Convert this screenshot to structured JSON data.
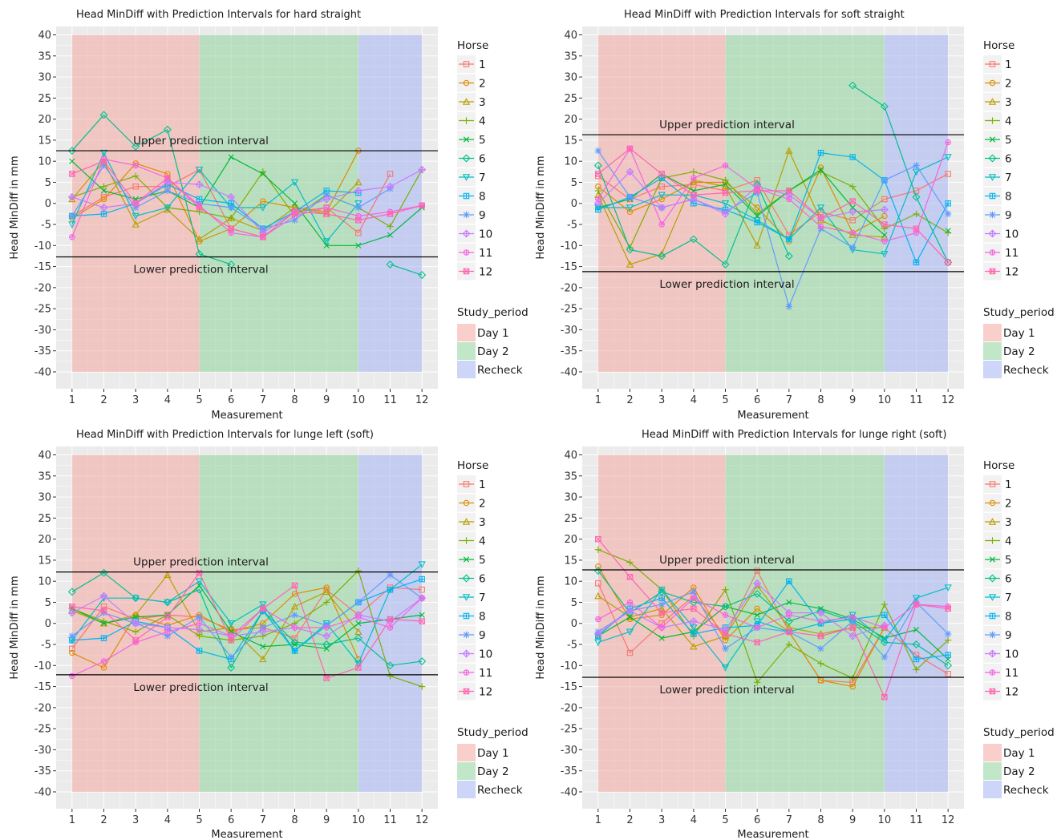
{
  "colors": {
    "panel_bg": "#ebebeb",
    "grid": "#ffffff",
    "interval_line": "#000000",
    "period_fill": {
      "Day 1": "#f4a7a2",
      "Day 2": "#8fd39a",
      "Recheck": "#a4b2f4"
    },
    "horse": [
      "#f8766d",
      "#de8c00",
      "#b79f00",
      "#7cae00",
      "#00ba38",
      "#00c08b",
      "#00bfc4",
      "#00b4f0",
      "#619cff",
      "#c77cff",
      "#f564e3",
      "#ff64b0"
    ]
  },
  "legend": {
    "horse_title": "Horse",
    "horses": [
      "1",
      "2",
      "3",
      "4",
      "5",
      "6",
      "7",
      "8",
      "9",
      "10",
      "11",
      "12"
    ],
    "period_title": "Study_period",
    "periods": [
      "Day 1",
      "Day 2",
      "Recheck"
    ]
  },
  "chart_data": [
    {
      "type": "line",
      "title": "Head MinDiff with Prediction Intervals for hard straight",
      "xlabel": "Measurement",
      "ylabel": "Head MinDiff in mm",
      "x": [
        1,
        2,
        3,
        4,
        5,
        6,
        7,
        8,
        9,
        10,
        11,
        12
      ],
      "xlim": [
        0.5,
        12.5
      ],
      "ylim": [
        -44,
        42
      ],
      "yticks": [
        40,
        35,
        30,
        25,
        20,
        15,
        10,
        5,
        0,
        -5,
        -10,
        -15,
        -20,
        -25,
        -30,
        -35,
        -40
      ],
      "grid": true,
      "legend_position": "right",
      "period_shading": [
        {
          "period": "Day 1",
          "from": 1,
          "to": 5
        },
        {
          "period": "Day 2",
          "from": 5,
          "to": 10
        },
        {
          "period": "Recheck",
          "from": 10,
          "to": 12
        }
      ],
      "upper_interval": {
        "value": 12.5,
        "label": "Upper prediction interval"
      },
      "lower_interval": {
        "value": -12.7,
        "label": "Lower prediction interval"
      },
      "series": [
        {
          "name": "1",
          "values": [
            -3,
            1.5,
            4,
            4,
            8,
            -6,
            -8,
            -2,
            -1,
            -7,
            7,
            null
          ]
        },
        {
          "name": "2",
          "values": [
            -3.5,
            1,
            9.5,
            7,
            -9,
            -6,
            0.5,
            -1,
            -2,
            12.5,
            null,
            null
          ]
        },
        {
          "name": "3",
          "values": [
            1,
            10,
            -5,
            -1.5,
            -8.5,
            -3.5,
            -6.5,
            -1,
            -2.5,
            5,
            null,
            null
          ]
        },
        {
          "name": "4",
          "values": [
            1.5,
            4,
            6.5,
            -1,
            -2,
            -3.5,
            7.5,
            -3,
            2,
            -1,
            -5.5,
            8
          ]
        },
        {
          "name": "5",
          "values": [
            10,
            3,
            1,
            3,
            -1,
            11,
            7,
            0,
            -10,
            -10,
            -7.5,
            -1
          ]
        },
        {
          "name": "6",
          "values": [
            12.5,
            21,
            13.5,
            17.5,
            -12,
            -14.5,
            null,
            null,
            null,
            null,
            -14.5,
            -17
          ]
        },
        {
          "name": "7",
          "values": [
            -5,
            12,
            -3,
            -1,
            8,
            -1,
            -1,
            5,
            -9,
            0,
            null,
            null
          ]
        },
        {
          "name": "8",
          "values": [
            -3,
            -2.5,
            0,
            4.5,
            1,
            0,
            -6,
            -2,
            3,
            2.5,
            null,
            null
          ]
        },
        {
          "name": "9",
          "values": [
            -3,
            9,
            -1,
            3,
            0,
            -1,
            -6,
            -4,
            2,
            -1,
            3.5,
            null
          ]
        },
        {
          "name": "10",
          "values": [
            1.5,
            -1,
            0,
            5,
            4.5,
            1.5,
            -7,
            -2,
            1,
            3,
            4,
            8
          ]
        },
        {
          "name": "11",
          "values": [
            -8,
            10.5,
            9,
            6,
            -0.5,
            -7,
            -8,
            -3,
            -1,
            -3,
            -2,
            -0.5
          ]
        },
        {
          "name": "12",
          "values": [
            7,
            10,
            0,
            6,
            -1,
            -6,
            -8,
            -2,
            -2.5,
            -4,
            -2.5,
            -0.5
          ]
        }
      ]
    },
    {
      "type": "line",
      "title": "Head MinDiff with Prediction Intervals for soft straight",
      "xlabel": "Measurement",
      "ylabel": "Head MinDiff in mm",
      "x": [
        1,
        2,
        3,
        4,
        5,
        6,
        7,
        8,
        9,
        10,
        11,
        12
      ],
      "xlim": [
        0.5,
        12.5
      ],
      "ylim": [
        -44,
        42
      ],
      "yticks": [
        40,
        35,
        30,
        25,
        20,
        15,
        10,
        5,
        0,
        -5,
        -10,
        -15,
        -20,
        -25,
        -30,
        -35,
        -40
      ],
      "grid": true,
      "legend_position": "right",
      "period_shading": [
        {
          "period": "Day 1",
          "from": 1,
          "to": 5
        },
        {
          "period": "Day 2",
          "from": 5,
          "to": 10
        },
        {
          "period": "Recheck",
          "from": 10,
          "to": 12
        }
      ],
      "upper_interval": {
        "value": 16.3,
        "label": "Upper prediction interval"
      },
      "lower_interval": {
        "value": -16.2,
        "label": "Lower prediction interval"
      },
      "series": [
        {
          "name": "1",
          "values": [
            6.5,
            1,
            4,
            4.5,
            3,
            5.5,
            -7.5,
            -2,
            -4,
            1,
            3,
            7
          ]
        },
        {
          "name": "2",
          "values": [
            4,
            -2,
            1,
            5,
            5,
            -1,
            -9,
            8.5,
            -7,
            -3,
            null,
            null
          ]
        },
        {
          "name": "3",
          "values": [
            2,
            -14.5,
            -12,
            5.5,
            4,
            -10,
            12.5,
            -4,
            -7.5,
            -8,
            null,
            null
          ]
        },
        {
          "name": "4",
          "values": [
            3,
            -10.5,
            6,
            7.5,
            5.5,
            -2.5,
            3,
            7.5,
            4,
            -6,
            -2.5,
            -7
          ]
        },
        {
          "name": "5",
          "values": [
            -1,
            1,
            7,
            3,
            4.5,
            -3,
            3,
            8,
            -1,
            -7.5,
            null,
            -6.5
          ]
        },
        {
          "name": "6",
          "values": [
            9,
            -11,
            -12.5,
            -8.5,
            -14.5,
            4.5,
            -12.5,
            null,
            28,
            23,
            1.5,
            -14
          ]
        },
        {
          "name": "7",
          "values": [
            -1,
            -1,
            2,
            2,
            0,
            -4,
            -8.5,
            -1,
            -11,
            -12,
            7.5,
            11
          ]
        },
        {
          "name": "8",
          "values": [
            -1.5,
            1.5,
            6,
            0,
            -1.5,
            -4.5,
            -8.5,
            12,
            11,
            5.5,
            -14,
            0
          ]
        },
        {
          "name": "9",
          "values": [
            12.5,
            1.5,
            -1,
            1,
            -2,
            2.5,
            -24.5,
            -6,
            -10.5,
            5.5,
            9,
            -2.5
          ]
        },
        {
          "name": "10",
          "values": [
            0,
            7.5,
            -1,
            1,
            -2.5,
            4,
            2,
            -3.5,
            -2,
            -1.5,
            null,
            null
          ]
        },
        {
          "name": "11",
          "values": [
            1,
            13,
            -5,
            6,
            9,
            3.5,
            1,
            -5.5,
            -7,
            -9,
            -7,
            14.5
          ]
        },
        {
          "name": "12",
          "values": [
            7,
            13,
            7,
            2,
            2.5,
            3,
            3,
            -3.5,
            0.5,
            -5,
            -6,
            -14
          ]
        }
      ]
    },
    {
      "type": "line",
      "title": "Head MinDiff with Prediction Intervals for lunge left (soft)",
      "xlabel": "Measurement",
      "ylabel": "Head MinDiff in mm",
      "x": [
        1,
        2,
        3,
        4,
        5,
        6,
        7,
        8,
        9,
        10,
        11,
        12
      ],
      "xlim": [
        0.5,
        12.5
      ],
      "ylim": [
        -44,
        42
      ],
      "yticks": [
        40,
        35,
        30,
        25,
        20,
        15,
        10,
        5,
        0,
        -5,
        -10,
        -15,
        -20,
        -25,
        -30,
        -35,
        -40
      ],
      "grid": true,
      "legend_position": "right",
      "period_shading": [
        {
          "period": "Day 1",
          "from": 1,
          "to": 5
        },
        {
          "period": "Day 2",
          "from": 5,
          "to": 10
        },
        {
          "period": "Recheck",
          "from": 10,
          "to": 12
        }
      ],
      "upper_interval": {
        "value": 12.2,
        "label": "Upper prediction interval"
      },
      "lower_interval": {
        "value": -12.2,
        "label": "Lower prediction interval"
      },
      "series": [
        {
          "name": "1",
          "values": [
            -6,
            4,
            1,
            2,
            1.5,
            -1.5,
            -1,
            -3.5,
            8,
            2,
            8.5,
            8
          ]
        },
        {
          "name": "2",
          "values": [
            -7,
            -10.5,
            2,
            -0.5,
            2,
            -2,
            0,
            7,
            8.5,
            -8.5,
            null,
            null
          ]
        },
        {
          "name": "3",
          "values": [
            3,
            0,
            2,
            11.5,
            -2,
            -1,
            -8.5,
            4,
            7.5,
            -2,
            null,
            null
          ]
        },
        {
          "name": "4",
          "values": [
            3.5,
            0.5,
            -2,
            2,
            -3,
            -4,
            -3,
            0,
            5,
            12.5,
            -12.5,
            -15
          ]
        },
        {
          "name": "5",
          "values": [
            3.5,
            0,
            1.5,
            2,
            9,
            -2,
            -5.5,
            -5,
            -6,
            0,
            1,
            2
          ]
        },
        {
          "name": "6",
          "values": [
            7.5,
            12,
            6,
            5,
            8,
            -10.5,
            3,
            -4.5,
            -5,
            -3.5,
            -10,
            -9
          ]
        },
        {
          "name": "7",
          "values": [
            -4,
            6,
            6,
            5,
            10,
            0,
            4.5,
            -6.5,
            0,
            -9.5,
            8,
            14
          ]
        },
        {
          "name": "8",
          "values": [
            -4,
            -3.5,
            0.5,
            -1,
            -6.5,
            -8.5,
            3,
            -6.5,
            -0.5,
            5,
            8,
            10.5
          ]
        },
        {
          "name": "9",
          "values": [
            -3,
            2.5,
            0,
            -3,
            1.5,
            -8,
            -1,
            2,
            -0.5,
            5,
            11.5,
            6
          ]
        },
        {
          "name": "10",
          "values": [
            2.5,
            6.5,
            0,
            -1,
            -1.5,
            -3,
            -2,
            -1,
            -3,
            2,
            0.5,
            6
          ]
        },
        {
          "name": "11",
          "values": [
            -12.5,
            -9,
            -4.5,
            -2,
            0,
            -3,
            3.5,
            -1,
            -1,
            1.5,
            -1,
            6
          ]
        },
        {
          "name": "12",
          "values": [
            4,
            3,
            -4,
            1.5,
            12,
            -4,
            3.5,
            9,
            -13,
            -10.5,
            1,
            0.5
          ]
        }
      ]
    },
    {
      "type": "line",
      "title": "Head MinDiff with Prediction Intervals for lunge right (soft)",
      "xlabel": "Measurement",
      "ylabel": "Head MinDiff in mm",
      "x": [
        1,
        2,
        3,
        4,
        5,
        6,
        7,
        8,
        9,
        10,
        11,
        12
      ],
      "xlim": [
        0.5,
        12.5
      ],
      "ylim": [
        -44,
        42
      ],
      "yticks": [
        40,
        35,
        30,
        25,
        20,
        15,
        10,
        5,
        0,
        -5,
        -10,
        -15,
        -20,
        -25,
        -30,
        -35,
        -40
      ],
      "grid": true,
      "legend_position": "right",
      "period_shading": [
        {
          "period": "Day 1",
          "from": 1,
          "to": 5
        },
        {
          "period": "Day 2",
          "from": 5,
          "to": 10
        },
        {
          "period": "Recheck",
          "from": 10,
          "to": 12
        }
      ],
      "upper_interval": {
        "value": 12.7,
        "label": "Upper prediction interval"
      },
      "lower_interval": {
        "value": -12.8,
        "label": "Lower prediction interval"
      },
      "series": [
        {
          "name": "1",
          "values": [
            9.5,
            -7,
            0,
            6.5,
            -3,
            12.5,
            -2,
            -13.5,
            -14,
            -1,
            -7.5,
            -12
          ]
        },
        {
          "name": "2",
          "values": [
            13.5,
            1,
            2,
            8.5,
            -4,
            3.5,
            -2,
            -13.5,
            -15,
            -1,
            null,
            null
          ]
        },
        {
          "name": "3",
          "values": [
            6.5,
            1.5,
            3.5,
            -5.5,
            -3,
            9,
            -1,
            -2.5,
            -1,
            -1,
            null,
            null
          ]
        },
        {
          "name": "4",
          "values": [
            17.5,
            14.5,
            8,
            -3,
            8,
            -14,
            -5,
            -9.5,
            -13,
            4.5,
            -11,
            -4
          ]
        },
        {
          "name": "5",
          "values": [
            -3,
            1.5,
            -3.5,
            -2,
            4,
            2,
            5,
            3.5,
            1,
            -3.5,
            -1.5,
            -8.5
          ]
        },
        {
          "name": "6",
          "values": [
            12.5,
            2.5,
            7.5,
            5,
            4,
            7,
            0.5,
            3,
            0.5,
            -4.5,
            -5,
            -10
          ]
        },
        {
          "name": "7",
          "values": [
            -4.5,
            -2,
            8,
            -1,
            -10.5,
            0.5,
            -2,
            0,
            2,
            -4,
            6,
            8.5
          ]
        },
        {
          "name": "8",
          "values": [
            -3,
            3.5,
            6,
            -2.5,
            -1,
            -0.5,
            10,
            0,
            1,
            2,
            -8.5,
            -7.5
          ]
        },
        {
          "name": "9",
          "values": [
            -2,
            3,
            4.5,
            7.5,
            -6,
            -1,
            -2,
            -6,
            0.5,
            -8,
            5,
            -2.5
          ]
        },
        {
          "name": "10",
          "values": [
            -2.5,
            3,
            -1,
            0.5,
            -1.5,
            9.5,
            2.5,
            2.5,
            -3,
            -0.5,
            null,
            null
          ]
        },
        {
          "name": "11",
          "values": [
            1,
            5,
            -1,
            6,
            2,
            -1,
            2,
            0.5,
            1.5,
            -1,
            4.5,
            4
          ]
        },
        {
          "name": "12",
          "values": [
            20,
            11,
            2.5,
            3.5,
            -2.5,
            -4.5,
            -2,
            -3,
            -1,
            -17.5,
            4.5,
            3.5
          ]
        }
      ]
    }
  ]
}
